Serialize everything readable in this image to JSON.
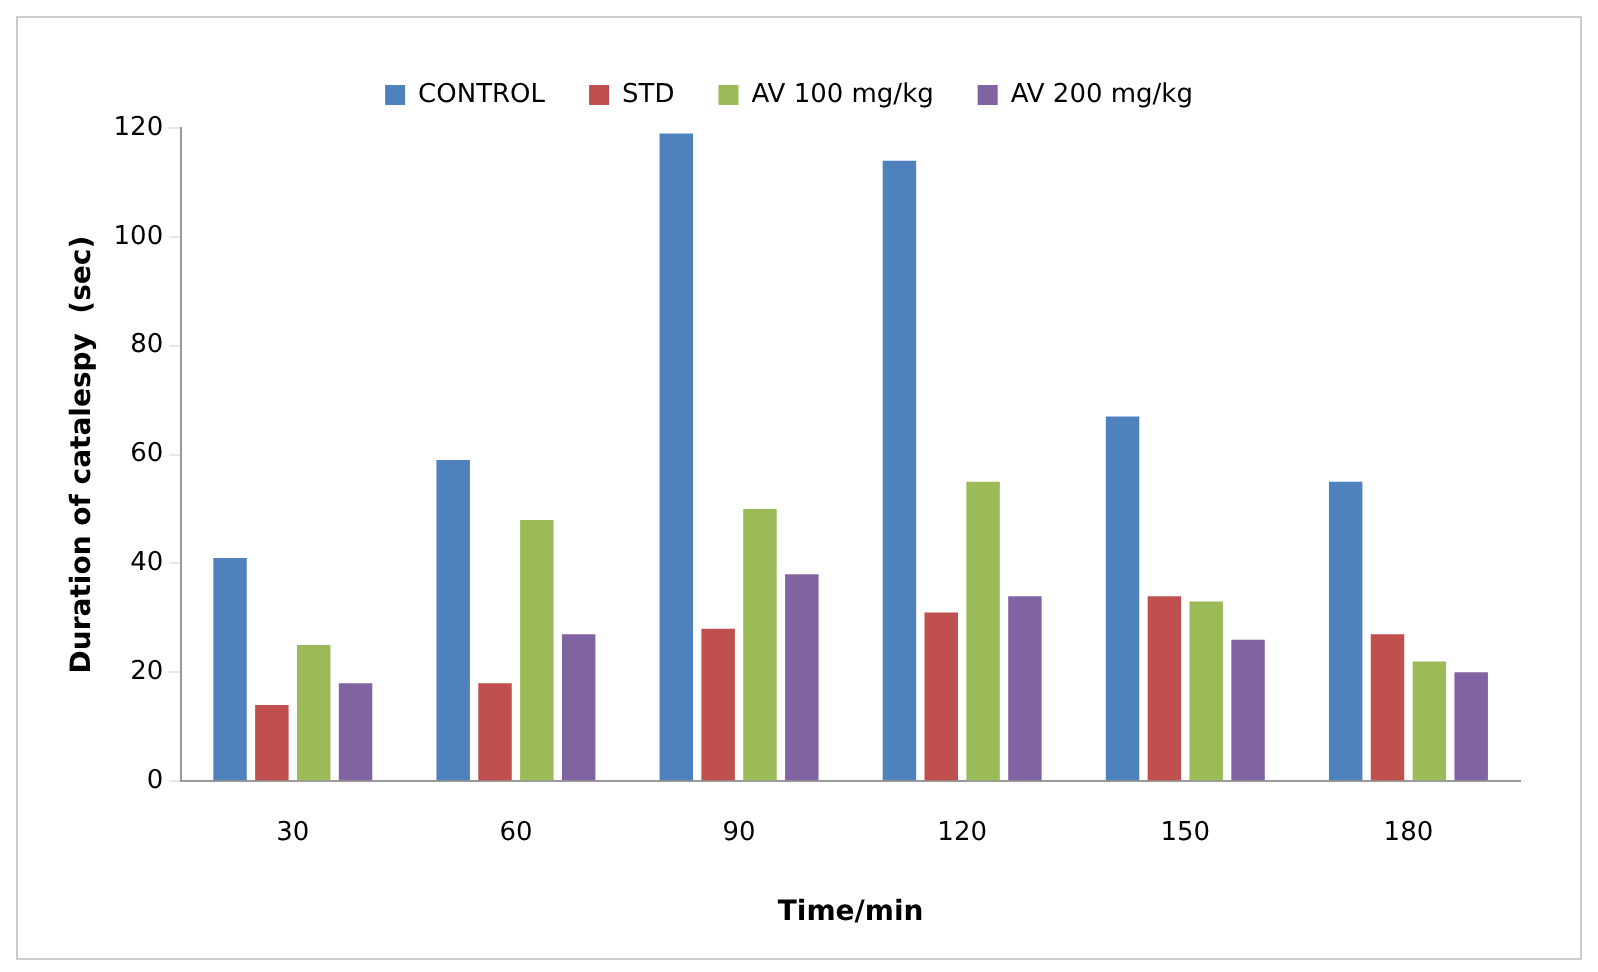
{
  "chart_data": {
    "type": "bar",
    "xlabel": "Time/min",
    "ylabel": "Duration of catalespy  (sec)",
    "categories": [
      "30",
      "60",
      "90",
      "120",
      "150",
      "180"
    ],
    "series": [
      {
        "name": "CONTROL",
        "color": "#4f81bd",
        "values": [
          41,
          59,
          119,
          114,
          67,
          55
        ]
      },
      {
        "name": "STD",
        "color": "#c0504d",
        "values": [
          14,
          18,
          28,
          31,
          34,
          27
        ]
      },
      {
        "name": "AV 100 mg/kg",
        "color": "#9bbb59",
        "values": [
          25,
          48,
          50,
          55,
          33,
          22
        ]
      },
      {
        "name": "AV 200 mg/kg",
        "color": "#8064a2",
        "values": [
          18,
          27,
          38,
          34,
          26,
          20
        ]
      }
    ],
    "ylim": [
      0,
      120
    ],
    "yticks": [
      0,
      20,
      40,
      60,
      80,
      100,
      120
    ],
    "grid": false,
    "legend": "top"
  }
}
